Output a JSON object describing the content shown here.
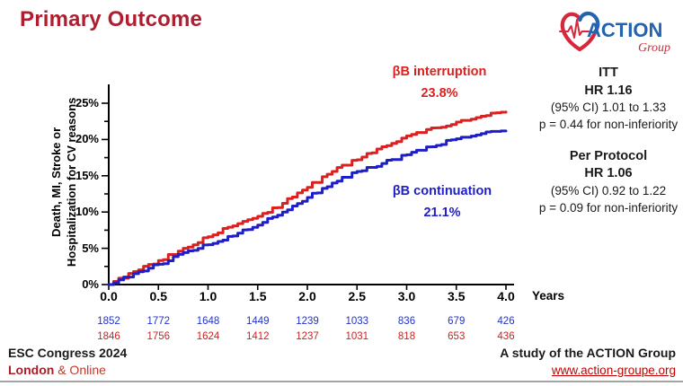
{
  "title": "Primary Outcome",
  "logo": {
    "name": "ACTION",
    "sub": "Group"
  },
  "chart_data": {
    "type": "line",
    "subtype": "kaplan-meier-cumulative-incidence",
    "title": "Primary Outcome",
    "xlabel": "Years",
    "ylabel_line1": "Death, MI, Stroke or",
    "ylabel_line2": "Hospitalization for CV reasons",
    "xlim": [
      0,
      4
    ],
    "ylim_percent": [
      0,
      25
    ],
    "x_tick_labels": [
      "0.0",
      "0.5",
      "1.0",
      "1.5",
      "2.0",
      "2.5",
      "3.0",
      "3.5",
      "4.0"
    ],
    "y_tick_labels": [
      "0%",
      "5%",
      "10%",
      "15%",
      "20%",
      "25%"
    ],
    "x": [
      0,
      0.25,
      0.5,
      0.75,
      1.0,
      1.25,
      1.5,
      1.75,
      2.0,
      2.25,
      2.5,
      2.75,
      3.0,
      3.25,
      3.5,
      3.75,
      4.0
    ],
    "series": [
      {
        "name": "βB interruption",
        "color": "#DC1F1F",
        "final_label": "23.8%",
        "values": [
          0,
          1.8,
          3.3,
          5.0,
          6.6,
          8.1,
          9.4,
          11.2,
          13.4,
          15.6,
          17.2,
          19.0,
          20.5,
          21.6,
          22.4,
          23.2,
          23.8
        ]
      },
      {
        "name": "βB continuation",
        "color": "#1E1EC8",
        "final_label": "21.1%",
        "values": [
          0,
          1.5,
          2.8,
          4.4,
          5.5,
          6.7,
          8.2,
          10.0,
          12.0,
          14.0,
          15.6,
          16.7,
          17.9,
          19.0,
          20.1,
          20.8,
          21.1
        ]
      }
    ],
    "at_risk": [
      {
        "group": "βB continuation",
        "color": "#2233CC",
        "counts": [
          "1852",
          "1772",
          "1648",
          "1449",
          "1239",
          "1033",
          "836",
          "679",
          "426"
        ]
      },
      {
        "group": "βB interruption",
        "color": "#CC2222",
        "counts": [
          "1846",
          "1756",
          "1624",
          "1412",
          "1237",
          "1031",
          "818",
          "653",
          "436"
        ]
      }
    ],
    "legend_position": "annotations-on-plot",
    "grid": false
  },
  "stats": {
    "itt_header": "ITT",
    "itt_hr": "HR 1.16",
    "itt_ci": "(95% CI) 1.01 to 1.33",
    "itt_p": "p = 0.44 for non-inferiority",
    "pp_header": "Per Protocol",
    "pp_hr": "HR 1.06",
    "pp_ci": "(95% CI) 0.92 to 1.22",
    "pp_p": "p = 0.09 for non-inferiority"
  },
  "footer": {
    "congress": "ESC Congress 2024",
    "city": "London",
    "online": "& Online",
    "study": "A study of the ACTION Group",
    "url": "www.action-groupe.org"
  }
}
